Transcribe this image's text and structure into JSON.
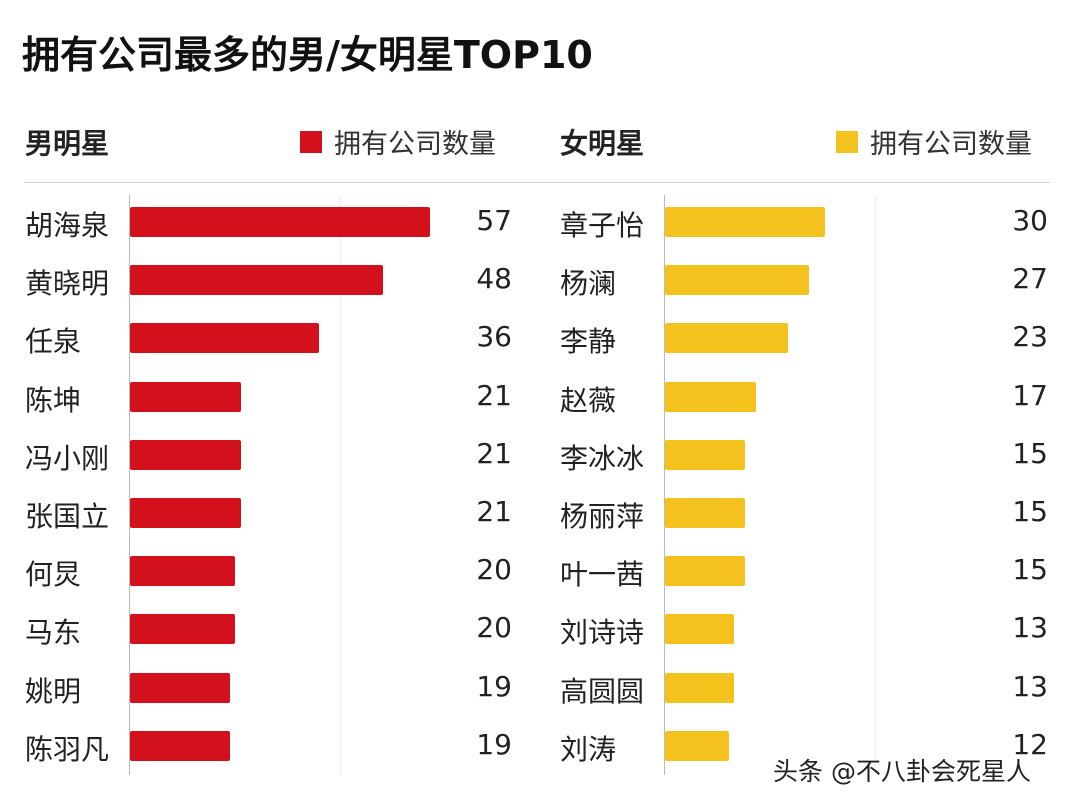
{
  "chart_data": [
    {
      "type": "bar",
      "orientation": "horizontal",
      "group_title": "男明星",
      "legend": "拥有公司数量",
      "color": "#d3111c",
      "categories": [
        "胡海泉",
        "黄晓明",
        "任泉",
        "陈坤",
        "冯小刚",
        "张国立",
        "何炅",
        "马东",
        "姚明",
        "陈羽凡"
      ],
      "values": [
        57,
        48,
        36,
        21,
        21,
        21,
        20,
        20,
        19,
        19
      ]
    },
    {
      "type": "bar",
      "orientation": "horizontal",
      "group_title": "女明星",
      "legend": "拥有公司数量",
      "color": "#f4c21c",
      "categories": [
        "章子怡",
        "杨澜",
        "李静",
        "赵薇",
        "李冰冰",
        "杨丽萍",
        "叶一茜",
        "刘诗诗",
        "高圆圆",
        "刘涛"
      ],
      "values": [
        30,
        27,
        23,
        17,
        15,
        15,
        15,
        13,
        13,
        12
      ]
    }
  ],
  "title": "拥有公司最多的男/女明星TOP10",
  "watermark": "头条 @不八卦会死星人"
}
